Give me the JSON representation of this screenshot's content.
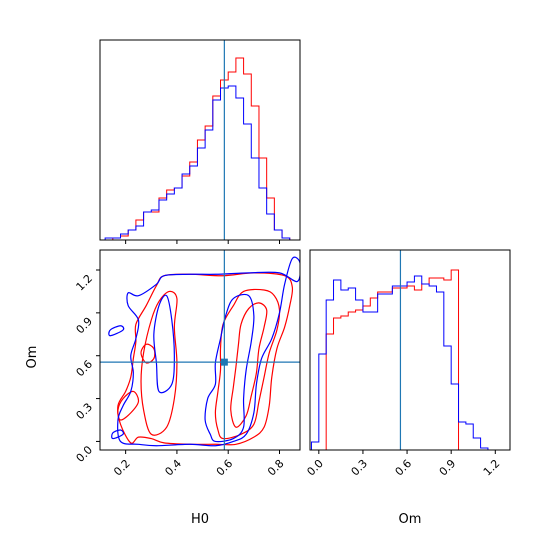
{
  "colors": {
    "red": "#ff0000",
    "blue": "#0000ff",
    "truth": "#1f77b4"
  },
  "chart_data": {
    "type": "corner",
    "parameters": [
      "H0",
      "Om"
    ],
    "truth": {
      "H0": 0.585,
      "Om": 0.555
    },
    "series": [
      {
        "color": "red"
      },
      {
        "color": "blue"
      }
    ],
    "h0_hist": {
      "type": "step",
      "xlim": [
        0.1,
        0.88
      ],
      "ylim": [
        0,
        1.0
      ],
      "grid": false,
      "bin_edges": [
        0.12,
        0.15,
        0.18,
        0.21,
        0.24,
        0.27,
        0.3,
        0.33,
        0.36,
        0.39,
        0.42,
        0.45,
        0.48,
        0.51,
        0.54,
        0.57,
        0.6,
        0.63,
        0.66,
        0.69,
        0.72,
        0.75,
        0.78,
        0.81,
        0.84,
        0.87
      ],
      "red": [
        0.0,
        0.01,
        0.02,
        0.05,
        0.1,
        0.14,
        0.14,
        0.21,
        0.25,
        0.26,
        0.32,
        0.39,
        0.5,
        0.57,
        0.72,
        0.8,
        0.84,
        0.91,
        0.83,
        0.67,
        0.41,
        0.21,
        0.05,
        0.01,
        0.0
      ],
      "blue": [
        0.01,
        0.01,
        0.03,
        0.05,
        0.07,
        0.14,
        0.15,
        0.2,
        0.23,
        0.26,
        0.33,
        0.37,
        0.46,
        0.55,
        0.7,
        0.76,
        0.77,
        0.71,
        0.58,
        0.41,
        0.26,
        0.13,
        0.05,
        0.01,
        0.0
      ]
    },
    "om_hist": {
      "type": "step",
      "xlim": [
        -0.06,
        1.3
      ],
      "ylim": [
        0,
        1.0
      ],
      "grid": false,
      "bin_edges": [
        -0.05,
        0.0,
        0.05,
        0.1,
        0.15,
        0.2,
        0.25,
        0.3,
        0.35,
        0.4,
        0.45,
        0.5,
        0.55,
        0.6,
        0.65,
        0.7,
        0.75,
        0.8,
        0.85,
        0.9,
        0.95,
        1.0,
        1.05,
        1.1,
        1.15,
        1.2,
        1.25
      ],
      "red": [
        0.0,
        0.0,
        0.58,
        0.66,
        0.67,
        0.69,
        0.7,
        0.72,
        0.76,
        0.79,
        0.79,
        0.81,
        0.81,
        0.82,
        0.8,
        0.83,
        0.86,
        0.86,
        0.85,
        0.9,
        0.0,
        0.0,
        0.0,
        0.0,
        0.0,
        0.0
      ],
      "blue": [
        0.04,
        0.48,
        0.75,
        0.85,
        0.8,
        0.81,
        0.75,
        0.69,
        0.69,
        0.78,
        0.78,
        0.82,
        0.82,
        0.84,
        0.87,
        0.83,
        0.82,
        0.79,
        0.52,
        0.33,
        0.14,
        0.13,
        0.06,
        0.01,
        0.0,
        0.0
      ],
      "xticks": [
        "0.0",
        "0.3",
        "0.6",
        "0.9",
        "1.2"
      ]
    },
    "contours": {
      "type": "contour",
      "xlabel": "H0",
      "ylabel": "Om",
      "xlim": [
        0.1,
        0.88
      ],
      "ylim": [
        -0.06,
        1.34
      ],
      "xticks": [
        "0.2",
        "0.4",
        "0.6",
        "0.8"
      ],
      "yticks": [
        "0.0",
        "0.3",
        "0.6",
        "0.9",
        "1.2"
      ],
      "red": [
        [
          [
            0.22,
            -0.01
          ],
          [
            0.25,
            0.03
          ],
          [
            0.3,
            0.02
          ],
          [
            0.35,
            -0.01
          ],
          [
            0.45,
            -0.02
          ],
          [
            0.55,
            -0.02
          ],
          [
            0.63,
            -0.02
          ],
          [
            0.7,
            0.03
          ],
          [
            0.74,
            0.1
          ],
          [
            0.76,
            0.25
          ],
          [
            0.77,
            0.45
          ],
          [
            0.79,
            0.65
          ],
          [
            0.82,
            0.8
          ],
          [
            0.84,
            0.95
          ],
          [
            0.85,
            1.08
          ],
          [
            0.82,
            1.16
          ],
          [
            0.7,
            1.18
          ],
          [
            0.58,
            1.16
          ],
          [
            0.45,
            1.17
          ],
          [
            0.35,
            1.16
          ],
          [
            0.32,
            1.09
          ],
          [
            0.28,
            0.95
          ],
          [
            0.24,
            0.82
          ],
          [
            0.24,
            0.7
          ],
          [
            0.23,
            0.58
          ],
          [
            0.22,
            0.45
          ],
          [
            0.2,
            0.35
          ],
          [
            0.17,
            0.25
          ],
          [
            0.18,
            0.12
          ],
          [
            0.22,
            -0.01
          ]
        ],
        [
          [
            0.58,
            0.02
          ],
          [
            0.65,
            0.05
          ],
          [
            0.7,
            0.12
          ],
          [
            0.72,
            0.28
          ],
          [
            0.74,
            0.45
          ],
          [
            0.76,
            0.62
          ],
          [
            0.79,
            0.78
          ],
          [
            0.8,
            0.92
          ],
          [
            0.78,
            1.02
          ],
          [
            0.74,
            1.06
          ],
          [
            0.66,
            1.05
          ],
          [
            0.62,
            0.95
          ],
          [
            0.58,
            0.82
          ],
          [
            0.57,
            0.65
          ],
          [
            0.57,
            0.5
          ],
          [
            0.56,
            0.35
          ],
          [
            0.55,
            0.2
          ],
          [
            0.56,
            0.08
          ],
          [
            0.58,
            0.02
          ]
        ],
        [
          [
            0.63,
            0.1
          ],
          [
            0.67,
            0.18
          ],
          [
            0.69,
            0.32
          ],
          [
            0.71,
            0.48
          ],
          [
            0.72,
            0.65
          ],
          [
            0.74,
            0.8
          ],
          [
            0.75,
            0.92
          ],
          [
            0.72,
            0.97
          ],
          [
            0.68,
            0.93
          ],
          [
            0.65,
            0.82
          ],
          [
            0.64,
            0.68
          ],
          [
            0.63,
            0.52
          ],
          [
            0.62,
            0.38
          ],
          [
            0.61,
            0.22
          ],
          [
            0.63,
            0.1
          ]
        ],
        [
          [
            0.3,
            0.05
          ],
          [
            0.36,
            0.1
          ],
          [
            0.39,
            0.3
          ],
          [
            0.4,
            0.55
          ],
          [
            0.39,
            0.8
          ],
          [
            0.4,
            1.0
          ],
          [
            0.37,
            1.05
          ],
          [
            0.33,
            0.98
          ],
          [
            0.3,
            0.85
          ],
          [
            0.27,
            0.62
          ],
          [
            0.26,
            0.42
          ],
          [
            0.27,
            0.22
          ],
          [
            0.3,
            0.05
          ]
        ],
        [
          [
            0.18,
            0.15
          ],
          [
            0.22,
            0.2
          ],
          [
            0.25,
            0.28
          ],
          [
            0.23,
            0.35
          ],
          [
            0.19,
            0.3
          ],
          [
            0.17,
            0.22
          ],
          [
            0.18,
            0.15
          ]
        ],
        [
          [
            0.28,
            0.55
          ],
          [
            0.31,
            0.58
          ],
          [
            0.31,
            0.65
          ],
          [
            0.28,
            0.68
          ],
          [
            0.26,
            0.62
          ],
          [
            0.28,
            0.55
          ]
        ]
      ],
      "blue": [
        [
          [
            0.18,
            0.0
          ],
          [
            0.25,
            -0.02
          ],
          [
            0.32,
            -0.03
          ],
          [
            0.45,
            -0.02
          ],
          [
            0.55,
            -0.03
          ],
          [
            0.62,
            0.0
          ],
          [
            0.67,
            0.05
          ],
          [
            0.7,
            0.2
          ],
          [
            0.71,
            0.4
          ],
          [
            0.73,
            0.58
          ],
          [
            0.77,
            0.72
          ],
          [
            0.8,
            0.9
          ],
          [
            0.82,
            1.1
          ],
          [
            0.85,
            1.28
          ],
          [
            0.88,
            1.25
          ],
          [
            0.87,
            1.12
          ],
          [
            0.8,
            1.18
          ],
          [
            0.68,
            1.18
          ],
          [
            0.55,
            1.17
          ],
          [
            0.45,
            1.17
          ],
          [
            0.35,
            1.16
          ],
          [
            0.32,
            1.1
          ],
          [
            0.25,
            1.02
          ],
          [
            0.21,
            1.04
          ],
          [
            0.21,
            0.95
          ],
          [
            0.25,
            0.85
          ],
          [
            0.24,
            0.72
          ],
          [
            0.22,
            0.6
          ],
          [
            0.23,
            0.48
          ],
          [
            0.22,
            0.35
          ],
          [
            0.19,
            0.25
          ],
          [
            0.17,
            0.15
          ],
          [
            0.18,
            0.0
          ]
        ],
        [
          [
            0.55,
            0.0
          ],
          [
            0.62,
            0.02
          ],
          [
            0.66,
            0.1
          ],
          [
            0.66,
            0.3
          ],
          [
            0.67,
            0.5
          ],
          [
            0.69,
            0.7
          ],
          [
            0.7,
            0.88
          ],
          [
            0.68,
            1.02
          ],
          [
            0.62,
            1.0
          ],
          [
            0.59,
            0.88
          ],
          [
            0.57,
            0.72
          ],
          [
            0.55,
            0.55
          ],
          [
            0.55,
            0.4
          ],
          [
            0.52,
            0.3
          ],
          [
            0.51,
            0.15
          ],
          [
            0.53,
            0.05
          ],
          [
            0.55,
            0.0
          ]
        ],
        [
          [
            0.33,
            0.35
          ],
          [
            0.38,
            0.4
          ],
          [
            0.39,
            0.6
          ],
          [
            0.38,
            0.85
          ],
          [
            0.36,
            1.02
          ],
          [
            0.33,
            0.95
          ],
          [
            0.31,
            0.75
          ],
          [
            0.32,
            0.55
          ],
          [
            0.33,
            0.35
          ]
        ],
        [
          [
            0.15,
            0.02
          ],
          [
            0.19,
            0.05
          ],
          [
            0.18,
            0.08
          ],
          [
            0.15,
            0.06
          ],
          [
            0.15,
            0.02
          ]
        ],
        [
          [
            0.14,
            0.74
          ],
          [
            0.19,
            0.78
          ],
          [
            0.18,
            0.81
          ],
          [
            0.14,
            0.78
          ],
          [
            0.14,
            0.74
          ]
        ]
      ]
    }
  }
}
